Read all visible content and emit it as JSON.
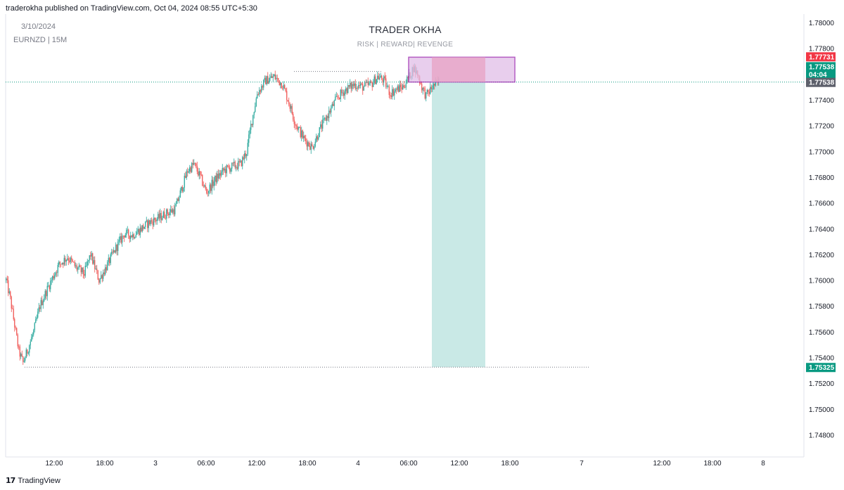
{
  "header": {
    "published_text": "traderokha published on TradingView.com, Oct 04, 2024 08:55 UTC+5:30"
  },
  "legend": {
    "date": "3/10/2024",
    "symbol": "EURNZD | 15M"
  },
  "watermark": {
    "title": "TRADER OKHA",
    "subtitle": "RISK | REWARD| REVENGE"
  },
  "footer": {
    "logo_glyph": "17",
    "brand": "TradingView"
  },
  "colors": {
    "up": "#26a69a",
    "down": "#ef5350",
    "risk_zone": "#e8a0c0",
    "risk_border": "#9c27b0",
    "reward_zone": "#b2dfdb",
    "stop_label": "#f23645",
    "current_label": "#089981",
    "entry_label": "#5d606b",
    "target_label": "#089981",
    "axis_text": "#131722",
    "grid_dotted": "#787b86"
  },
  "chart_data": {
    "type": "candlestick",
    "symbol": "EURNZD",
    "timeframe": "15M",
    "y_axis": {
      "min": 1.747,
      "max": 1.781,
      "ticks": [
        "1.78000",
        "1.77800",
        "1.77400",
        "1.77200",
        "1.77000",
        "1.76800",
        "1.76600",
        "1.76400",
        "1.76200",
        "1.76000",
        "1.75800",
        "1.75600",
        "1.75400",
        "1.75200",
        "1.75000",
        "1.74800"
      ]
    },
    "x_axis": {
      "ticks": [
        "12:00",
        "18:00",
        "3",
        "06:00",
        "12:00",
        "18:00",
        "4",
        "06:00",
        "12:00",
        "18:00",
        "7",
        "12:00",
        "18:00",
        "8"
      ]
    },
    "price_labels": [
      {
        "role": "stop",
        "value": "1.77731"
      },
      {
        "role": "current",
        "value": "1.77538",
        "countdown": "04:04"
      },
      {
        "role": "entry",
        "value": "1.77538"
      },
      {
        "role": "target",
        "value": "1.75325"
      }
    ],
    "position": {
      "direction": "short",
      "entry": 1.77538,
      "stop": 1.77731,
      "target": 1.75325
    },
    "price_path": [
      [
        0,
        1.76
      ],
      [
        4,
        1.7585
      ],
      [
        8,
        1.7565
      ],
      [
        12,
        1.7545
      ],
      [
        16,
        1.7536
      ],
      [
        20,
        1.7545
      ],
      [
        26,
        1.756
      ],
      [
        32,
        1.758
      ],
      [
        40,
        1.7595
      ],
      [
        50,
        1.7612
      ],
      [
        58,
        1.7618
      ],
      [
        66,
        1.761
      ],
      [
        74,
        1.7605
      ],
      [
        80,
        1.762
      ],
      [
        88,
        1.76
      ],
      [
        96,
        1.7612
      ],
      [
        104,
        1.7625
      ],
      [
        112,
        1.7636
      ],
      [
        120,
        1.7635
      ],
      [
        128,
        1.764
      ],
      [
        136,
        1.7645
      ],
      [
        144,
        1.7648
      ],
      [
        152,
        1.7652
      ],
      [
        160,
        1.7655
      ],
      [
        166,
        1.767
      ],
      [
        172,
        1.7685
      ],
      [
        178,
        1.769
      ],
      [
        184,
        1.768
      ],
      [
        190,
        1.7668
      ],
      [
        198,
        1.7678
      ],
      [
        206,
        1.7685
      ],
      [
        214,
        1.7688
      ],
      [
        222,
        1.769
      ],
      [
        228,
        1.77
      ],
      [
        232,
        1.772
      ],
      [
        238,
        1.7745
      ],
      [
        246,
        1.7755
      ],
      [
        254,
        1.7758
      ],
      [
        262,
        1.7752
      ],
      [
        268,
        1.7738
      ],
      [
        274,
        1.7722
      ],
      [
        282,
        1.771
      ],
      [
        290,
        1.7703
      ],
      [
        298,
        1.7718
      ],
      [
        306,
        1.773
      ],
      [
        314,
        1.7742
      ],
      [
        322,
        1.7748
      ],
      [
        330,
        1.7752
      ],
      [
        338,
        1.775
      ],
      [
        346,
        1.7752
      ],
      [
        352,
        1.7758
      ],
      [
        358,
        1.7755
      ],
      [
        364,
        1.7745
      ],
      [
        370,
        1.7748
      ],
      [
        376,
        1.775
      ],
      [
        382,
        1.7758
      ],
      [
        386,
        1.7765
      ],
      [
        390,
        1.776
      ],
      [
        394,
        1.775
      ],
      [
        398,
        1.7743
      ],
      [
        404,
        1.775
      ],
      [
        410,
        1.7754
      ]
    ]
  }
}
